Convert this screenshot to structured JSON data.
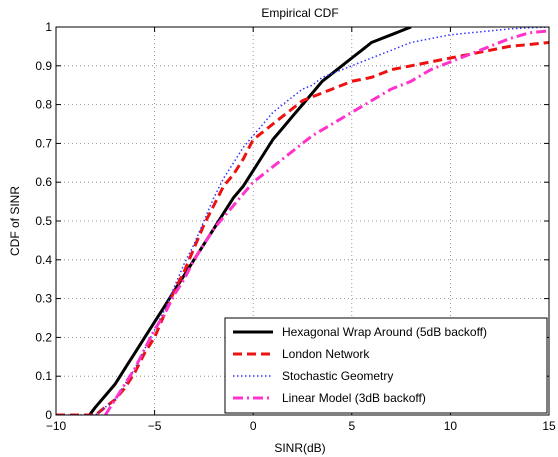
{
  "chart_data": {
    "type": "line",
    "title": "Empirical CDF",
    "xlabel": "SINR(dB)",
    "ylabel": "CDF of SINR",
    "xlim": [
      -10,
      15
    ],
    "ylim": [
      0,
      1
    ],
    "xticks": [
      "-10",
      "-5",
      "0",
      "5",
      "10",
      "15"
    ],
    "yticks": [
      "0",
      "0.1",
      "0.2",
      "0.3",
      "0.4",
      "0.5",
      "0.6",
      "0.7",
      "0.8",
      "0.9",
      "1"
    ],
    "grid": true,
    "legend_position": "bottom-right",
    "series": [
      {
        "name": "Hexagonal Wrap Around (5dB backoff)",
        "color": "#000000",
        "style": "solid",
        "x": [
          -8.3,
          -8.0,
          -7.5,
          -7.0,
          -6.5,
          -6.0,
          -5.5,
          -5.0,
          -4.5,
          -4.0,
          -3.5,
          -3.0,
          -2.5,
          -2.0,
          -1.5,
          -1.0,
          -0.5,
          0.0,
          0.5,
          1.0,
          1.5,
          2.0,
          2.5,
          3.0,
          3.5,
          4.0,
          4.5,
          5.0,
          5.5,
          6.0,
          6.5,
          7.0,
          7.5,
          8.0
        ],
        "y": [
          0.0,
          0.02,
          0.05,
          0.08,
          0.12,
          0.16,
          0.2,
          0.24,
          0.28,
          0.32,
          0.36,
          0.4,
          0.44,
          0.48,
          0.52,
          0.56,
          0.59,
          0.63,
          0.67,
          0.71,
          0.74,
          0.77,
          0.8,
          0.83,
          0.86,
          0.88,
          0.9,
          0.92,
          0.94,
          0.96,
          0.97,
          0.98,
          0.99,
          1.0
        ]
      },
      {
        "name": "London Network",
        "color": "#ee1111",
        "style": "dashed",
        "x": [
          -10.0,
          -9.0,
          -8.0,
          -7.5,
          -7.0,
          -6.5,
          -6.0,
          -5.5,
          -5.0,
          -4.5,
          -4.0,
          -3.5,
          -3.0,
          -2.5,
          -2.0,
          -1.5,
          -1.0,
          -0.5,
          0.0,
          0.5,
          1.0,
          1.5,
          2.0,
          2.5,
          3.0,
          4.0,
          5.0,
          6.0,
          7.0,
          8.0,
          9.0,
          10.0,
          11.0,
          12.0,
          13.0,
          14.0,
          15.0
        ],
        "y": [
          0.0,
          0.0,
          0.0,
          0.02,
          0.04,
          0.07,
          0.11,
          0.16,
          0.2,
          0.26,
          0.32,
          0.37,
          0.43,
          0.49,
          0.54,
          0.59,
          0.62,
          0.66,
          0.71,
          0.73,
          0.75,
          0.77,
          0.79,
          0.81,
          0.82,
          0.84,
          0.86,
          0.87,
          0.89,
          0.9,
          0.91,
          0.92,
          0.93,
          0.94,
          0.95,
          0.955,
          0.96
        ]
      },
      {
        "name": "Stochastic Geometry",
        "color": "#3333ff",
        "style": "dotted",
        "x": [
          -10.0,
          -9.0,
          -8.0,
          -7.5,
          -7.0,
          -6.5,
          -6.0,
          -5.5,
          -5.0,
          -4.5,
          -4.0,
          -3.5,
          -3.0,
          -2.5,
          -2.0,
          -1.5,
          -1.0,
          -0.5,
          0.0,
          0.5,
          1.0,
          1.5,
          2.0,
          2.5,
          3.0,
          3.5,
          4.0,
          5.0,
          6.0,
          7.0,
          8.0,
          9.0,
          10.0,
          11.0,
          12.0,
          13.0,
          14.0,
          15.0
        ],
        "y": [
          0.0,
          0.0,
          0.0,
          0.02,
          0.04,
          0.08,
          0.12,
          0.17,
          0.22,
          0.27,
          0.33,
          0.39,
          0.44,
          0.5,
          0.56,
          0.61,
          0.65,
          0.69,
          0.72,
          0.75,
          0.78,
          0.8,
          0.82,
          0.84,
          0.85,
          0.87,
          0.88,
          0.9,
          0.92,
          0.94,
          0.96,
          0.97,
          0.98,
          0.985,
          0.99,
          0.995,
          0.998,
          1.0
        ]
      },
      {
        "name": "Linear Model (3dB backoff)",
        "color": "#ff33cc",
        "style": "dashdot",
        "x": [
          -7.5,
          -7.0,
          -6.5,
          -6.0,
          -5.5,
          -5.0,
          -4.5,
          -4.0,
          -3.5,
          -3.0,
          -2.5,
          -2.0,
          -1.5,
          -1.0,
          -0.5,
          0.0,
          0.5,
          1.0,
          1.5,
          2.0,
          3.0,
          4.0,
          5.0,
          6.0,
          7.0,
          8.0,
          9.0,
          10.0,
          11.0,
          12.0,
          13.0,
          14.0,
          15.0
        ],
        "y": [
          0.0,
          0.04,
          0.08,
          0.12,
          0.17,
          0.22,
          0.26,
          0.31,
          0.35,
          0.4,
          0.44,
          0.48,
          0.51,
          0.54,
          0.57,
          0.6,
          0.62,
          0.64,
          0.66,
          0.68,
          0.72,
          0.75,
          0.78,
          0.81,
          0.84,
          0.86,
          0.89,
          0.91,
          0.93,
          0.95,
          0.97,
          0.985,
          0.99
        ]
      }
    ]
  }
}
